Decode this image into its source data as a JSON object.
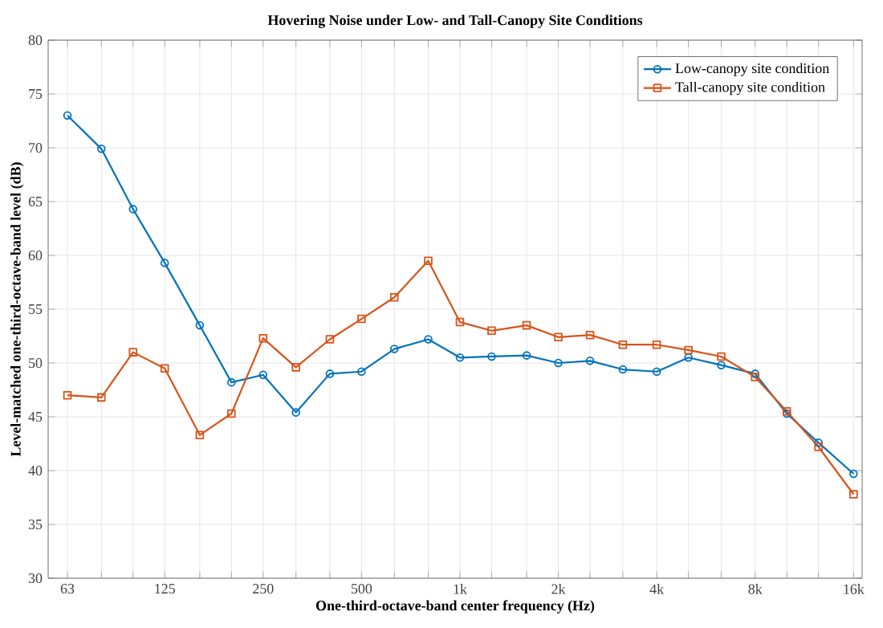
{
  "chart_data": {
    "type": "line",
    "title": "Hovering Noise under Low- and Tall-Canopy Site Conditions",
    "xlabel": "One-third-octave-band center frequency (Hz)",
    "ylabel": "Level-matched one-third-octave-band level (dB)",
    "x": [
      63,
      80,
      100,
      125,
      160,
      200,
      250,
      315,
      400,
      500,
      630,
      800,
      1000,
      1250,
      1600,
      2000,
      2500,
      3150,
      4000,
      5000,
      6300,
      8000,
      10000,
      12500,
      16000
    ],
    "series": [
      {
        "name": "Low-canopy site condition",
        "color": "#0072bd",
        "marker": "circle",
        "values": [
          73.0,
          69.9,
          64.3,
          59.3,
          53.5,
          48.2,
          48.9,
          45.4,
          49.0,
          49.2,
          51.3,
          52.2,
          50.5,
          50.6,
          50.7,
          50.0,
          50.2,
          49.4,
          49.2,
          50.5,
          49.8,
          49.0,
          45.3,
          42.6,
          39.7
        ]
      },
      {
        "name": "Tall-canopy site condition",
        "color": "#d95319",
        "marker": "square",
        "values": [
          47.0,
          46.8,
          51.0,
          49.5,
          43.3,
          45.3,
          52.3,
          49.6,
          52.2,
          54.1,
          56.1,
          59.5,
          53.8,
          53.0,
          53.5,
          52.4,
          52.6,
          51.7,
          51.7,
          51.2,
          50.6,
          48.7,
          45.5,
          42.2,
          37.8
        ]
      }
    ],
    "log": "x",
    "xlim": [
      55,
      17000
    ],
    "ylim": [
      30,
      80
    ],
    "xticks": [
      {
        "value": 63,
        "label": "63"
      },
      {
        "value": 80,
        "label": null
      },
      {
        "value": 100,
        "label": null
      },
      {
        "value": 125,
        "label": "125"
      },
      {
        "value": 160,
        "label": null
      },
      {
        "value": 200,
        "label": null
      },
      {
        "value": 250,
        "label": "250"
      },
      {
        "value": 315,
        "label": null
      },
      {
        "value": 400,
        "label": null
      },
      {
        "value": 500,
        "label": "500"
      },
      {
        "value": 630,
        "label": null
      },
      {
        "value": 800,
        "label": null
      },
      {
        "value": 1000,
        "label": "1k"
      },
      {
        "value": 1250,
        "label": null
      },
      {
        "value": 1600,
        "label": null
      },
      {
        "value": 2000,
        "label": "2k"
      },
      {
        "value": 2500,
        "label": null
      },
      {
        "value": 3150,
        "label": null
      },
      {
        "value": 4000,
        "label": "4k"
      },
      {
        "value": 5000,
        "label": null
      },
      {
        "value": 6300,
        "label": null
      },
      {
        "value": 8000,
        "label": "8k"
      },
      {
        "value": 10000,
        "label": null
      },
      {
        "value": 12500,
        "label": null
      },
      {
        "value": 16000,
        "label": "16k"
      }
    ],
    "yticks": [
      30,
      35,
      40,
      45,
      50,
      55,
      60,
      65,
      70,
      75,
      80
    ],
    "grid": true,
    "legend": "top right",
    "line_style": "solid"
  }
}
